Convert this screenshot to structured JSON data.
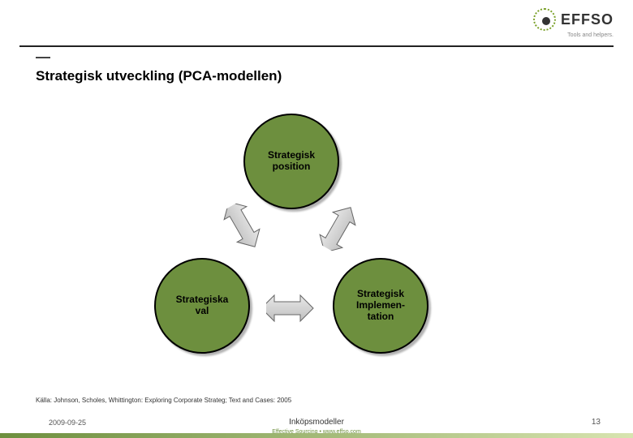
{
  "logo": {
    "text": "EFFSO",
    "tagline": "Tools and helpers.",
    "ring_color": "#7aa028",
    "text_color": "#333333"
  },
  "title": "Strategisk utveckling (PCA-modellen)",
  "diagram": {
    "type": "cycle-3-node",
    "node_fill": "#6d8f3e",
    "node_border": "#000000",
    "node_text_color": "#000000",
    "node_fontsize": 12,
    "nodes": {
      "top": "Strategisk\nposition",
      "left": "Strategiska\nval",
      "right": "Strategisk\nImplemen-\ntation"
    },
    "arrow_fill": "#e8e8e8",
    "arrow_stroke": "#666666",
    "arrow_gradient_end": "#bfbfbf"
  },
  "source": "Källa: Johnson, Scholes, Whittington: Exploring Corporate Strateg; Text and Cases: 2005",
  "footer": {
    "date": "2009-09-25",
    "title": "Inköpsmodeller",
    "sub": "Effective Sourcing • www.effso.com",
    "sub_color": "#6d8f3e",
    "page": "13",
    "bar_gradient_from": "#6d8f3e",
    "bar_gradient_to": "#d8e4b0"
  },
  "hr_color": "#222222",
  "background": "#ffffff"
}
